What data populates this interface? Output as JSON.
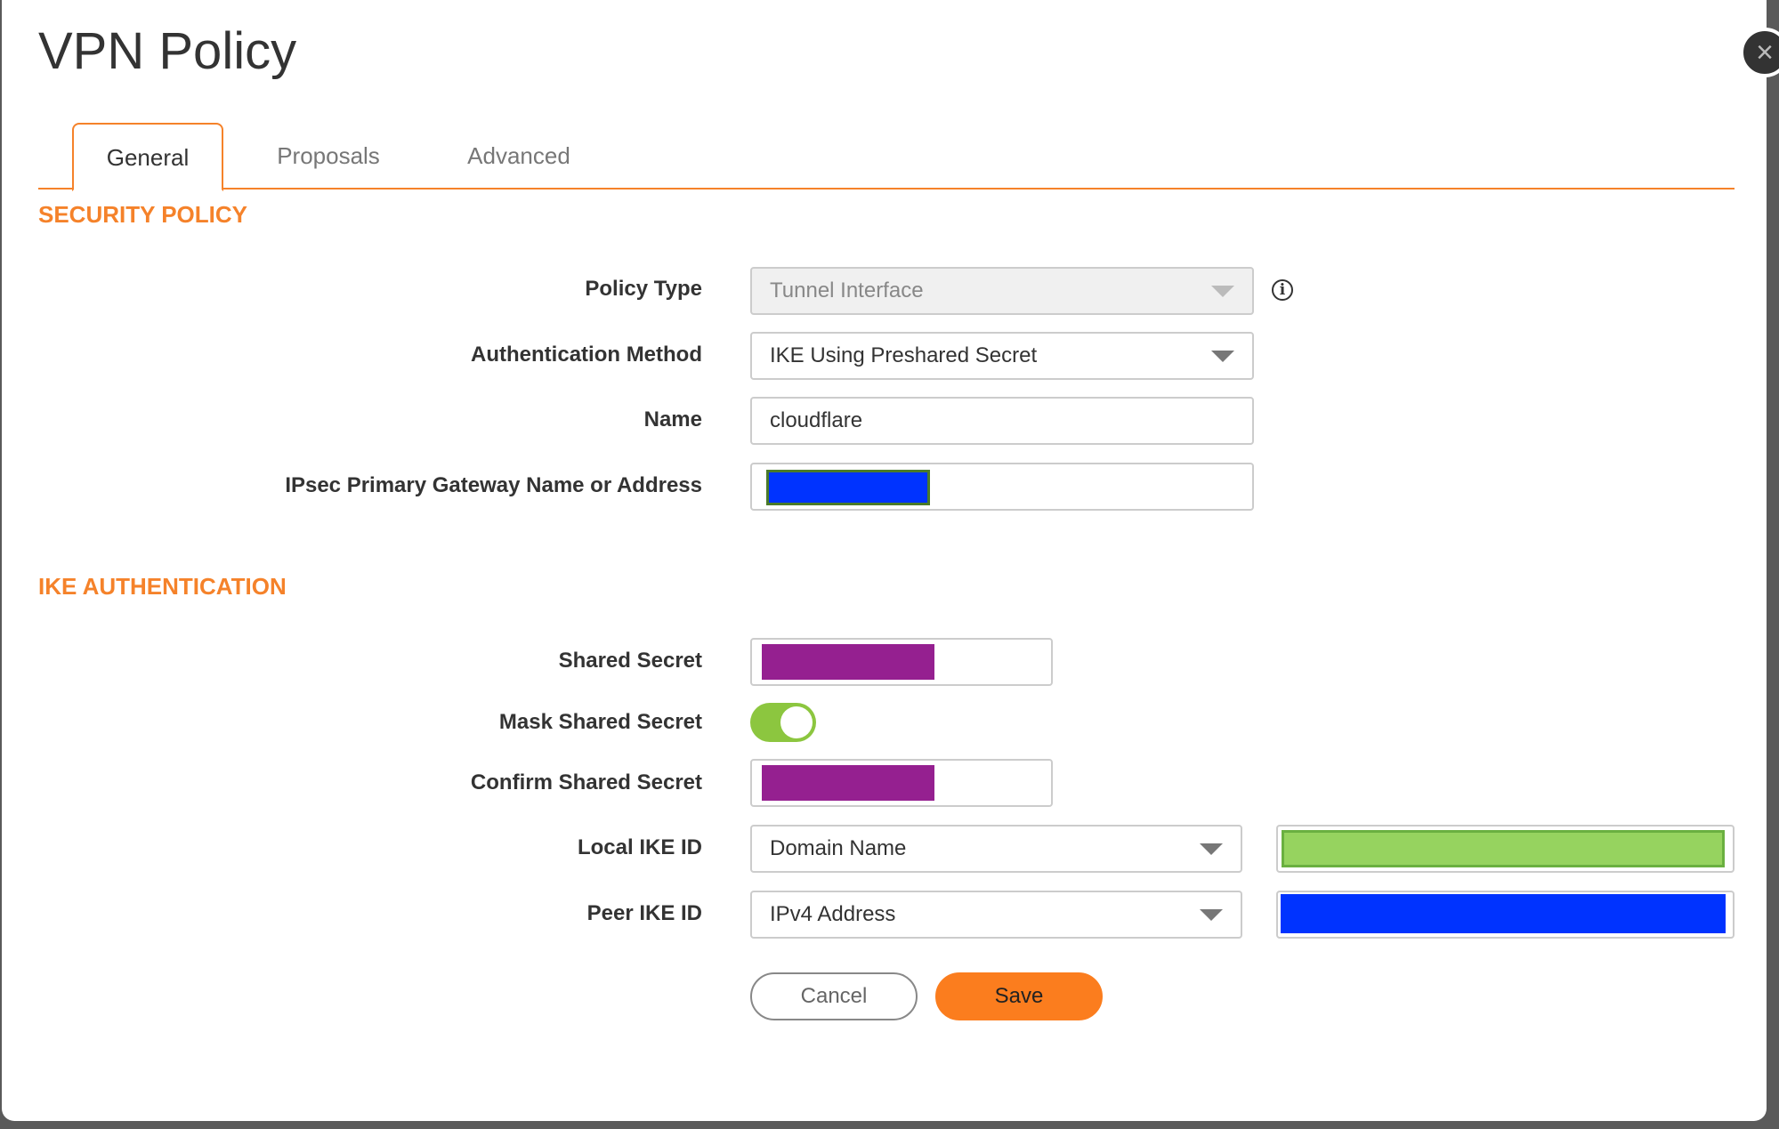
{
  "dialog": {
    "title": "VPN Policy"
  },
  "tabs": [
    {
      "label": "General",
      "active": true
    },
    {
      "label": "Proposals"
    },
    {
      "label": "Advanced"
    }
  ],
  "security_policy": {
    "heading": "SECURITY POLICY",
    "policy_type": {
      "label": "Policy Type",
      "value": "Tunnel Interface",
      "disabled": true
    },
    "auth_method": {
      "label": "Authentication Method",
      "value": "IKE Using Preshared Secret"
    },
    "name": {
      "label": "Name",
      "value": "cloudflare"
    },
    "gateway": {
      "label": "IPsec Primary Gateway Name or Address",
      "redaction_color": "#0033ff"
    }
  },
  "ike_auth": {
    "heading": "IKE AUTHENTICATION",
    "shared_secret": {
      "label": "Shared Secret",
      "redaction_color": "#952090"
    },
    "mask": {
      "label": "Mask Shared Secret",
      "on": true
    },
    "confirm": {
      "label": "Confirm Shared Secret",
      "redaction_color": "#952090"
    },
    "local_ike": {
      "label": "Local IKE ID",
      "value": "Domain Name",
      "redaction_color": "#96d35f"
    },
    "peer_ike": {
      "label": "Peer IKE ID",
      "value": "IPv4 Address",
      "redaction_color": "#0033ff"
    }
  },
  "buttons": {
    "cancel": "Cancel",
    "save": "Save"
  },
  "colors": {
    "accent": "#f5822a",
    "toggle_on": "#8cc63f"
  }
}
